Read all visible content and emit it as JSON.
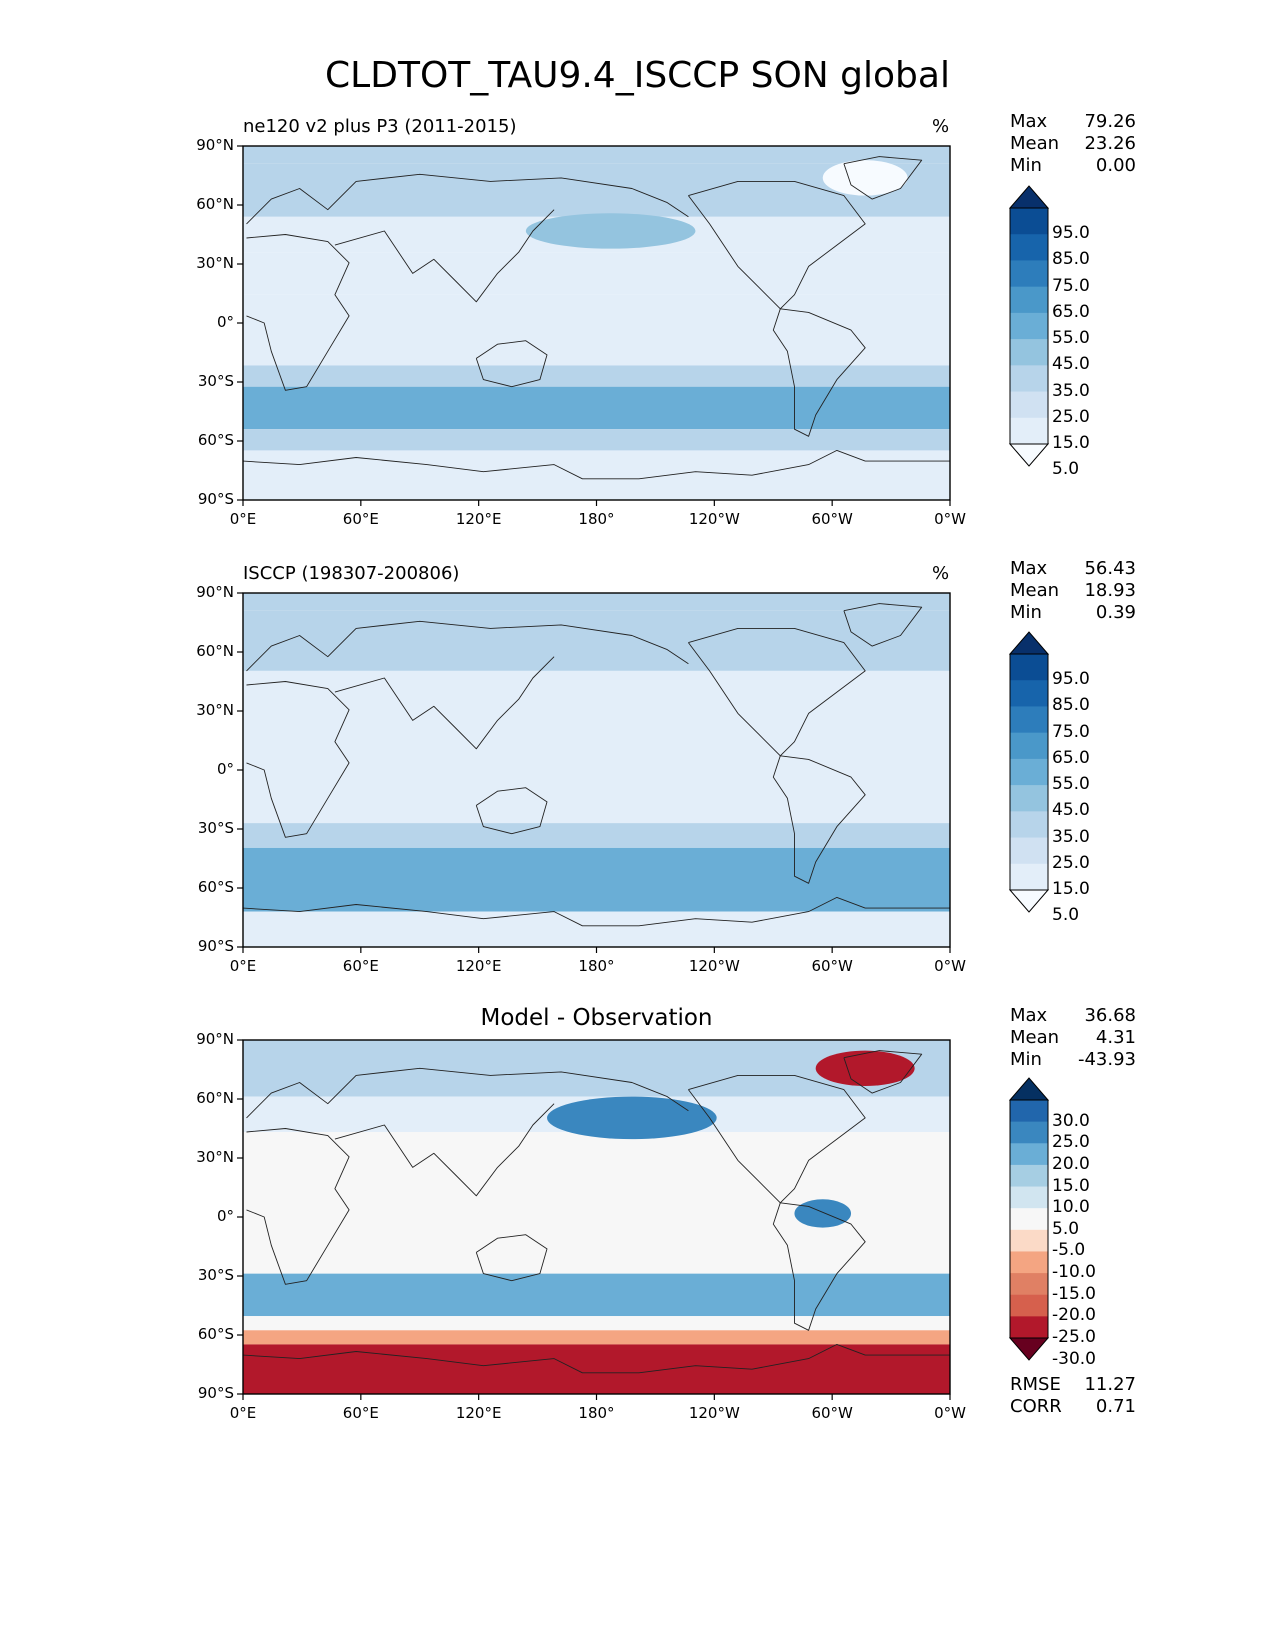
{
  "title": "CLDTOT_TAU9.4_ISCCP SON global",
  "panels": [
    {
      "id": "model",
      "label_left": "ne120 v2 plus P3 (2011-2015)",
      "label_center": "",
      "unit": "%",
      "stats": [
        {
          "name": "Max",
          "value": "79.26"
        },
        {
          "name": "Mean",
          "value": "23.26"
        },
        {
          "name": "Min",
          "value": "0.00"
        }
      ],
      "colorbar": {
        "levels": [
          "95.0",
          "85.0",
          "75.0",
          "65.0",
          "55.0",
          "45.0",
          "35.0",
          "25.0",
          "15.0",
          "5.0"
        ],
        "colors": [
          "#08306b",
          "#0b4d94",
          "#1764ab",
          "#2d7dbb",
          "#4a98c9",
          "#6aaed6",
          "#94c4df",
          "#b7d4ea",
          "#d0e1f2",
          "#e3eef9",
          "#f7fbff"
        ]
      },
      "footer": []
    },
    {
      "id": "obs",
      "label_left": "ISCCP (198307-200806)",
      "label_center": "",
      "unit": "%",
      "stats": [
        {
          "name": "Max",
          "value": "56.43"
        },
        {
          "name": "Mean",
          "value": "18.93"
        },
        {
          "name": "Min",
          "value": "0.39"
        }
      ],
      "colorbar": {
        "levels": [
          "95.0",
          "85.0",
          "75.0",
          "65.0",
          "55.0",
          "45.0",
          "35.0",
          "25.0",
          "15.0",
          "5.0"
        ],
        "colors": [
          "#08306b",
          "#0b4d94",
          "#1764ab",
          "#2d7dbb",
          "#4a98c9",
          "#6aaed6",
          "#94c4df",
          "#b7d4ea",
          "#d0e1f2",
          "#e3eef9",
          "#f7fbff"
        ]
      },
      "footer": []
    },
    {
      "id": "diff",
      "label_left": "",
      "label_center": "Model - Observation",
      "unit": "",
      "stats": [
        {
          "name": "Max",
          "value": "36.68"
        },
        {
          "name": "Mean",
          "value": "4.31"
        },
        {
          "name": "Min",
          "value": "-43.93"
        }
      ],
      "colorbar": {
        "levels": [
          "30.0",
          "25.0",
          "20.0",
          "15.0",
          "10.0",
          "5.0",
          "-5.0",
          "-10.0",
          "-15.0",
          "-20.0",
          "-25.0",
          "-30.0"
        ],
        "colors": [
          "#053061",
          "#2166ac",
          "#3a87bf",
          "#6aaed6",
          "#a6cee3",
          "#d1e5f0",
          "#f7f7f7",
          "#fbdac7",
          "#f4a582",
          "#e08064",
          "#d6604d",
          "#b2182b",
          "#67001f"
        ]
      },
      "footer": [
        {
          "name": "RMSE",
          "value": "11.27"
        },
        {
          "name": "CORR",
          "value": "0.71"
        }
      ]
    }
  ],
  "axes": {
    "lat_ticks": [
      "90°N",
      "60°N",
      "30°N",
      "0°",
      "30°S",
      "60°S",
      "90°S"
    ],
    "lon_ticks": [
      "0°E",
      "60°E",
      "120°E",
      "180°",
      "120°W",
      "60°W",
      "0°W"
    ]
  },
  "map_colors": {
    "ocean_blue_light": "#e3eef9",
    "ocean_blue_mid": "#b7d4ea",
    "ocean_blue_strong": "#6aaed6",
    "ocean_blue_deep": "#2d7dbb",
    "neutral": "#f7f7f7",
    "red_light": "#f4a582",
    "red_strong": "#b2182b"
  }
}
